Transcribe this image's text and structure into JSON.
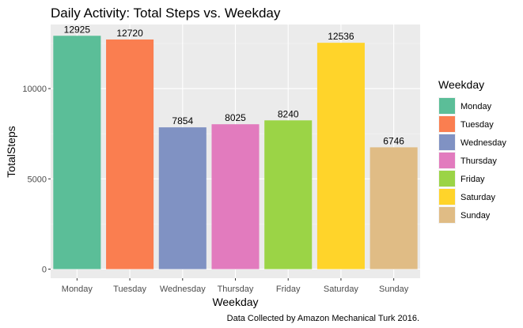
{
  "chart_data": {
    "type": "bar",
    "title": "Daily Activity: Total Steps vs. Weekday",
    "xlabel": "Weekday",
    "ylabel": "TotalSteps",
    "categories": [
      "Monday",
      "Tuesday",
      "Wednesday",
      "Thursday",
      "Friday",
      "Saturday",
      "Sunday"
    ],
    "values": [
      12925,
      12720,
      7854,
      8025,
      8240,
      12536,
      6746
    ],
    "data_labels": [
      "12925",
      "12720",
      "7854",
      "8025",
      "8240",
      "12536",
      "6746"
    ],
    "colors": [
      "#5BBE98",
      "#FA7E50",
      "#8092C3",
      "#E27BBE",
      "#9BD446",
      "#FFD42A",
      "#E0BC85"
    ],
    "ylim": [
      0,
      13550
    ],
    "yticks": [
      0,
      5000,
      10000
    ],
    "ytick_labels": [
      "0",
      "5000",
      "10000"
    ],
    "grid": true,
    "legend": {
      "title": "Weekday",
      "placement": "right",
      "entries": [
        "Monday",
        "Tuesday",
        "Wednesday",
        "Thursday",
        "Friday",
        "Saturday",
        "Sunday"
      ]
    },
    "caption": "Data Collected by Amazon Mechanical Turk 2016."
  }
}
